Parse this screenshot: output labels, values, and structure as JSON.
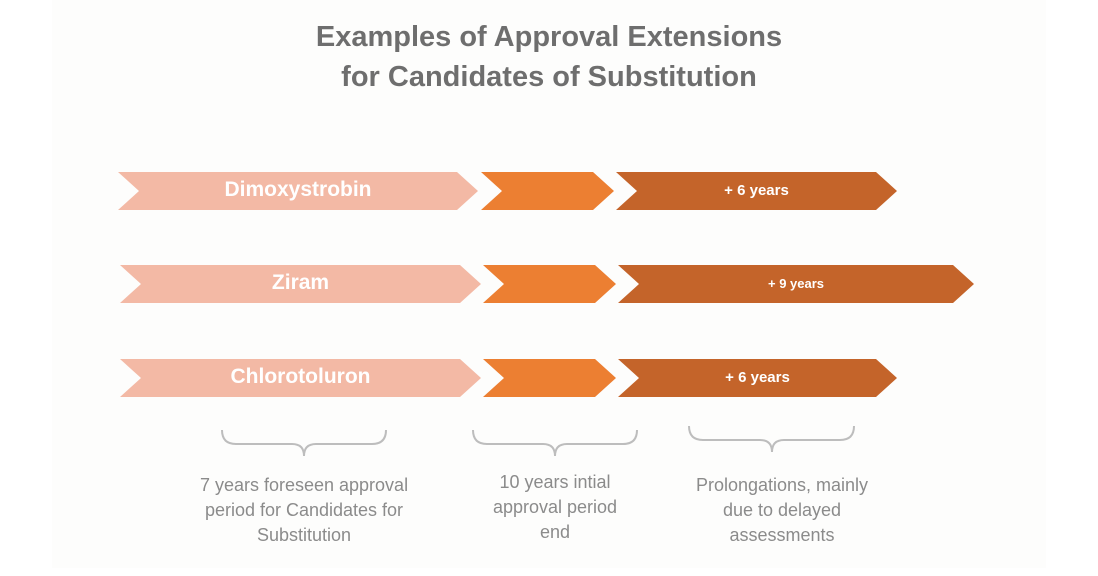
{
  "title_line1": "Examples of Approval Extensions",
  "title_line2": "for Candidates of Substitution",
  "colors": {
    "title": "#6e6e6e",
    "foreseen": "#f3b9a5",
    "initial": "#ec7f32",
    "prolongation": "#c4642a",
    "label": "#ffffff",
    "note": "#8b8b8b",
    "brace": "#bdbdbd"
  },
  "rows": [
    {
      "substance": "Dimoxystrobin",
      "extension": "+ 6 years"
    },
    {
      "substance": "Ziram",
      "extension": "+ 9 years"
    },
    {
      "substance": "Chlorotoluron",
      "extension": "+ 6 years"
    }
  ],
  "notes": {
    "foreseen": [
      "7 years foreseen approval",
      "period for Candidates for",
      "Substitution"
    ],
    "initial": [
      "10 years intial",
      "approval period",
      "end"
    ],
    "prolongation": [
      "Prolongations, mainly",
      "due to delayed",
      "assessments"
    ]
  }
}
